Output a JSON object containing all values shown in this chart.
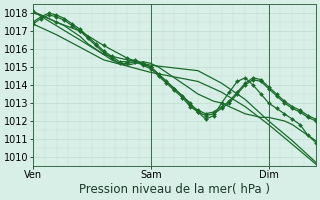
{
  "bg_color": "#d8efe8",
  "grid_color": "#c0ddd0",
  "line_color": "#1a6b2a",
  "xlabel": "Pression niveau de la mer( hPa )",
  "xlabel_fontsize": 8.5,
  "tick_fontsize": 7,
  "ylim": [
    1009.5,
    1018.5
  ],
  "yticks": [
    1010,
    1011,
    1012,
    1013,
    1014,
    1015,
    1016,
    1017,
    1018
  ],
  "xtick_labels": [
    "Ven",
    "Sam",
    "Dim"
  ],
  "xtick_positions": [
    0.0,
    0.417,
    0.833
  ],
  "vline_positions": [
    0.0,
    0.417,
    0.833
  ],
  "xlim": [
    0.0,
    1.0
  ],
  "series": [
    {
      "x": [
        0.0,
        0.028,
        0.056,
        0.083,
        0.111,
        0.139,
        0.167,
        0.194,
        0.222,
        0.25,
        0.278,
        0.306,
        0.333,
        0.361,
        0.389,
        0.417,
        0.444,
        0.472,
        0.5,
        0.528,
        0.556,
        0.583,
        0.611,
        0.639,
        0.667,
        0.694,
        0.722,
        0.75,
        0.778,
        0.806,
        0.833,
        0.861,
        0.889,
        0.917,
        0.944,
        0.972,
        1.0
      ],
      "y": [
        1018.0,
        1017.9,
        1017.7,
        1017.5,
        1017.3,
        1017.0,
        1016.7,
        1016.3,
        1016.0,
        1015.7,
        1015.4,
        1015.2,
        1015.1,
        1015.2,
        1015.3,
        1015.2,
        1015.0,
        1014.7,
        1014.4,
        1014.1,
        1013.8,
        1013.5,
        1013.3,
        1013.1,
        1013.0,
        1012.8,
        1012.6,
        1012.4,
        1012.3,
        1012.2,
        1012.2,
        1012.1,
        1012.0,
        1011.8,
        1011.5,
        1011.2,
        1010.9
      ],
      "has_markers": false,
      "linewidth": 0.9
    },
    {
      "x": [
        0.0,
        0.028,
        0.056,
        0.083,
        0.111,
        0.139,
        0.167,
        0.194,
        0.222,
        0.25,
        0.278,
        0.306,
        0.333,
        0.361,
        0.389,
        0.417,
        0.444,
        0.472,
        0.5,
        0.528,
        0.556,
        0.583,
        0.611,
        0.639,
        0.667,
        0.694,
        0.722,
        0.75,
        0.778,
        0.806,
        0.833,
        0.861,
        0.889,
        0.917,
        0.944,
        0.972,
        1.0
      ],
      "y": [
        1017.4,
        1017.7,
        1017.9,
        1017.8,
        1017.6,
        1017.3,
        1017.0,
        1016.6,
        1016.2,
        1015.8,
        1015.5,
        1015.2,
        1015.2,
        1015.3,
        1015.1,
        1014.9,
        1014.5,
        1014.1,
        1013.7,
        1013.3,
        1012.8,
        1012.5,
        1012.3,
        1012.4,
        1012.7,
        1013.0,
        1013.5,
        1014.0,
        1014.3,
        1014.2,
        1013.8,
        1013.4,
        1013.0,
        1012.7,
        1012.5,
        1012.2,
        1012.0
      ],
      "has_markers": true,
      "linewidth": 0.9
    },
    {
      "x": [
        0.0,
        0.028,
        0.056,
        0.083,
        0.111,
        0.139,
        0.167,
        0.194,
        0.222,
        0.25,
        0.278,
        0.306,
        0.333,
        0.361,
        0.389,
        0.417,
        0.444,
        0.472,
        0.5,
        0.528,
        0.556,
        0.583,
        0.611,
        0.639,
        0.667,
        0.694,
        0.722,
        0.75,
        0.778,
        0.806,
        0.833,
        0.861,
        0.889,
        0.917,
        0.944,
        0.972,
        1.0
      ],
      "y": [
        1017.5,
        1017.8,
        1018.0,
        1017.9,
        1017.7,
        1017.4,
        1017.1,
        1016.7,
        1016.3,
        1015.9,
        1015.6,
        1015.3,
        1015.3,
        1015.4,
        1015.2,
        1015.0,
        1014.6,
        1014.2,
        1013.8,
        1013.4,
        1012.9,
        1012.6,
        1012.4,
        1012.5,
        1012.8,
        1013.1,
        1013.6,
        1014.1,
        1014.4,
        1014.3,
        1013.9,
        1013.5,
        1013.1,
        1012.8,
        1012.6,
        1012.3,
        1012.1
      ],
      "has_markers": true,
      "linewidth": 0.9
    },
    {
      "x": [
        0.0,
        0.083,
        0.167,
        0.25,
        0.333,
        0.417,
        0.5,
        0.556,
        0.583,
        0.611,
        0.639,
        0.667,
        0.694,
        0.722,
        0.75,
        0.778,
        0.806,
        0.833,
        0.861,
        0.889,
        0.917,
        0.944,
        0.972,
        1.0
      ],
      "y": [
        1018.1,
        1017.5,
        1017.0,
        1016.2,
        1015.5,
        1015.0,
        1013.8,
        1013.0,
        1012.5,
        1012.1,
        1012.3,
        1013.0,
        1013.6,
        1014.2,
        1014.4,
        1014.0,
        1013.5,
        1013.0,
        1012.7,
        1012.4,
        1012.1,
        1011.8,
        1011.2,
        1010.8
      ],
      "has_markers": true,
      "linewidth": 0.9
    },
    {
      "x": [
        0.0,
        0.083,
        0.167,
        0.25,
        0.417,
        0.583,
        0.667,
        0.75,
        0.833,
        0.917,
        1.0
      ],
      "y": [
        1018.1,
        1017.3,
        1016.5,
        1015.7,
        1015.1,
        1014.8,
        1014.1,
        1013.2,
        1012.0,
        1010.9,
        1009.7
      ],
      "has_markers": false,
      "linewidth": 0.9
    },
    {
      "x": [
        0.0,
        0.083,
        0.167,
        0.25,
        0.417,
        0.583,
        0.667,
        0.75,
        0.833,
        0.917,
        1.0
      ],
      "y": [
        1017.4,
        1016.8,
        1016.1,
        1015.4,
        1014.7,
        1014.2,
        1013.6,
        1012.8,
        1011.8,
        1010.7,
        1009.6
      ],
      "has_markers": false,
      "linewidth": 0.9
    }
  ]
}
